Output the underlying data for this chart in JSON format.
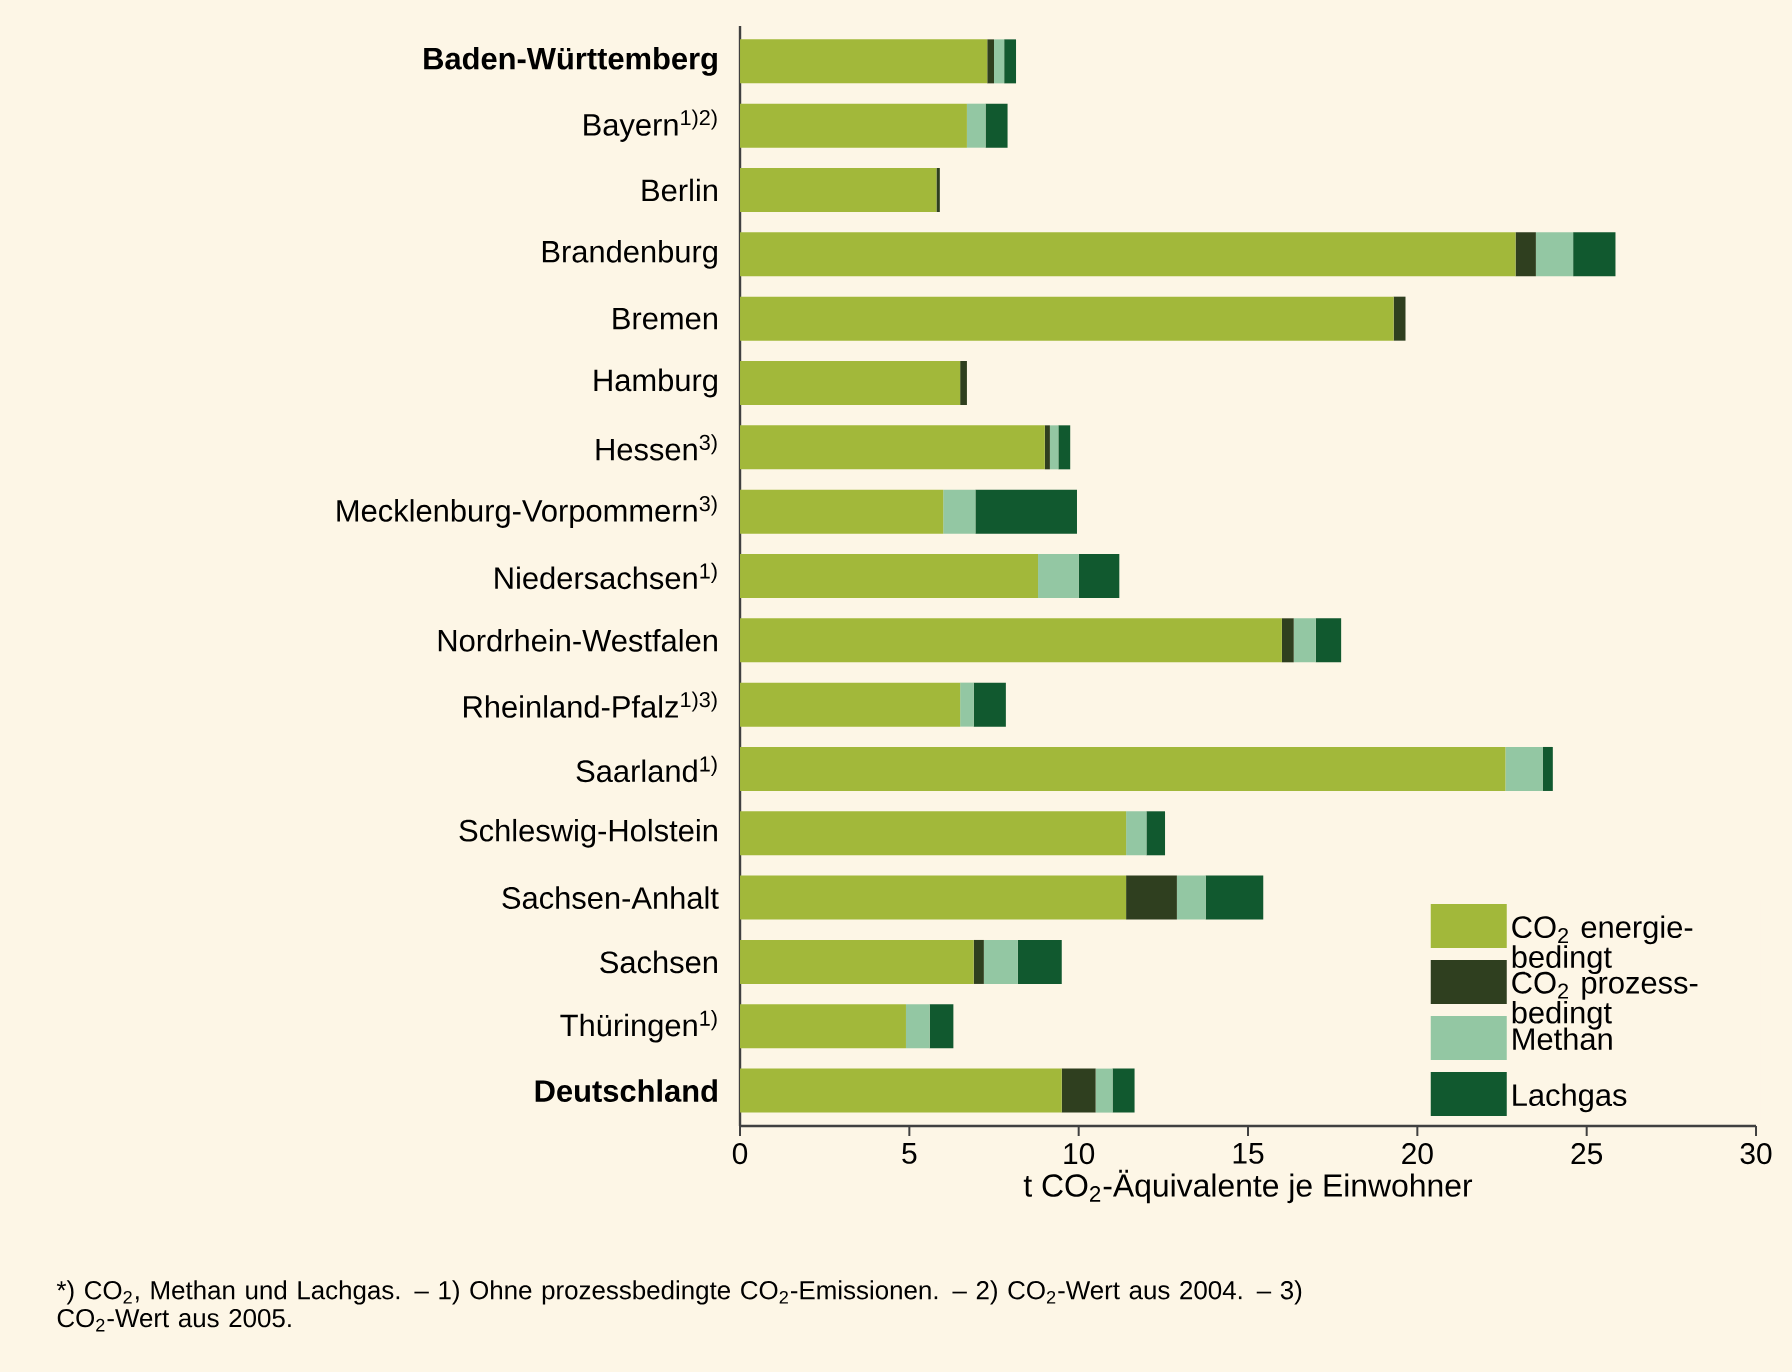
{
  "chart_data": {
    "type": "bar",
    "orientation": "horizontal",
    "stacked": true,
    "categories": [
      "Baden-Württemberg",
      "Bayern$^{1)2)}$",
      "Berlin",
      "Brandenburg",
      "Bremen",
      "Hamburg",
      "Hessen$^{3)}$",
      "Mecklenburg-Vorpommern$^{3)}$",
      "Niedersachsen$^{1)}$",
      "Nordrhein-Westfalen",
      "Rheinland-Pfalz$^{1)3)}$",
      "Saarland$^{1)}$",
      "Schleswig-Holstein",
      "Sachsen-Anhalt",
      "Sachsen",
      "Thüringen$^{1)}$",
      "Deutschland"
    ],
    "series": [
      {
        "name": "CO$_{2}$ energie-bedingt",
        "color": "#a2b83a",
        "values": [
          7.3,
          6.7,
          5.8,
          22.9,
          19.3,
          6.5,
          9.0,
          6.0,
          8.8,
          16.0,
          6.5,
          22.6,
          11.4,
          11.4,
          6.9,
          4.9,
          9.5
        ]
      },
      {
        "name": "CO$_{2}$ prozess-bedingt",
        "color": "#2f3f1f",
        "values": [
          0.2,
          0,
          0.1,
          0.6,
          0.35,
          0.2,
          0.15,
          0,
          0,
          0.35,
          0,
          0,
          0,
          1.5,
          0.3,
          0,
          1.0
        ]
      },
      {
        "name": "Methan",
        "color": "#93c7a3",
        "values": [
          0.3,
          0.55,
          0,
          1.1,
          0,
          0,
          0.25,
          0.95,
          1.2,
          0.65,
          0.4,
          1.1,
          0.6,
          0.85,
          1.0,
          0.7,
          0.5
        ]
      },
      {
        "name": "Lachgas",
        "color": "#11592f",
        "values": [
          0.35,
          0.65,
          0,
          1.25,
          0,
          0,
          0.35,
          3.0,
          1.2,
          0.75,
          0.95,
          0.3,
          0.55,
          1.7,
          1.3,
          0.7,
          0.65
        ]
      }
    ],
    "xlim": [
      0,
      30
    ],
    "xticks": [
      0,
      5,
      10,
      15,
      20,
      25,
      30
    ],
    "xlabel": "t CO$_{2}$-Äquivalente je Einwohner",
    "legend": "bottom right",
    "annotations": [
      "*) CO$_{2}$, Methan und Lachgas. – 1) Ohne prozessbedingte CO$_{2}$-Emissionen. – 2) CO$_{2}$-Wert aus 2004. – 3) CO$_{2}$-Wert aus 2005."
    ]
  }
}
